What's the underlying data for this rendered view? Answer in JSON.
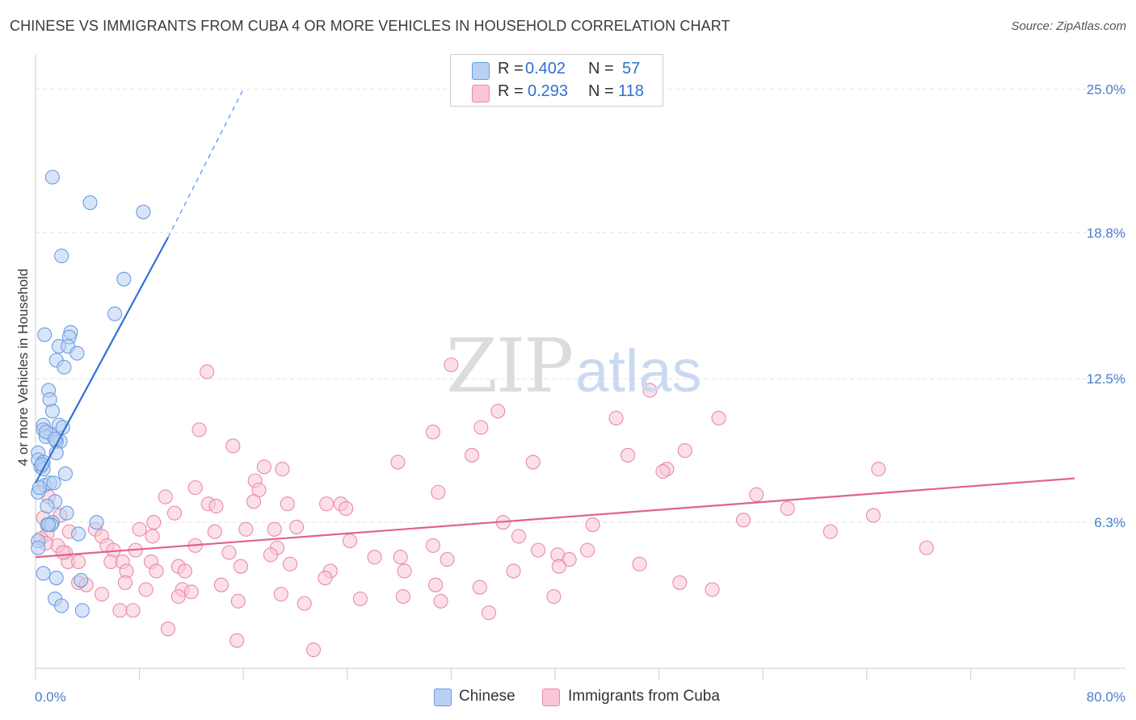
{
  "title": "CHINESE VS IMMIGRANTS FROM CUBA 4 OR MORE VEHICLES IN HOUSEHOLD CORRELATION CHART",
  "source": "Source: ZipAtlas.com",
  "watermark": {
    "zip": "ZIP",
    "atlas": "atlas"
  },
  "legend": {
    "rows": [
      {
        "r_label": "R = ",
        "r_value": "0.402",
        "n_label": "N = ",
        "n_value": "57"
      },
      {
        "r_label": "R = ",
        "r_value": "0.293",
        "n_label": "N = ",
        "n_value": "118"
      }
    ]
  },
  "colors": {
    "chinese_fill": "#b8d0f3",
    "chinese_stroke": "#6a9de0",
    "chinese_line": "#2f72d6",
    "cuba_fill": "#f9c6d6",
    "cuba_stroke": "#e98aa8",
    "cuba_line": "#e0628e",
    "tick_text": "#4a7cc7",
    "grid": "#e2e2e2"
  },
  "chart_data": {
    "type": "scatter",
    "title": "CHINESE VS IMMIGRANTS FROM CUBA 4 OR MORE VEHICLES IN HOUSEHOLD CORRELATION CHART",
    "xlabel": "",
    "ylabel": "4 or more Vehicles in Household",
    "xlim": [
      0,
      80
    ],
    "ylim": [
      0,
      26.2
    ],
    "x_tick_labels": [
      "0.0%",
      "80.0%"
    ],
    "y_ticks": [
      6.3,
      12.5,
      18.8,
      25.0
    ],
    "y_tick_labels": [
      "6.3%",
      "12.5%",
      "18.8%",
      "25.0%"
    ],
    "grid": true,
    "legend_position": "top-center",
    "series": [
      {
        "name": "Chinese",
        "R": 0.402,
        "N": 57,
        "trend": {
          "x0": 0.0,
          "y0": 8.0,
          "x1": 10.2,
          "y1": 18.6,
          "dash_to_x": 16.0,
          "dash_to_y": 25.0
        },
        "points": [
          [
            1.3,
            21.2
          ],
          [
            4.2,
            20.1
          ],
          [
            8.3,
            19.7
          ],
          [
            2.0,
            17.8
          ],
          [
            6.8,
            16.8
          ],
          [
            6.1,
            15.3
          ],
          [
            0.7,
            14.4
          ],
          [
            2.7,
            14.5
          ],
          [
            2.6,
            14.3
          ],
          [
            1.8,
            13.9
          ],
          [
            2.5,
            13.9
          ],
          [
            3.2,
            13.6
          ],
          [
            1.6,
            13.3
          ],
          [
            2.2,
            13.0
          ],
          [
            1.0,
            12.0
          ],
          [
            1.1,
            11.6
          ],
          [
            1.3,
            11.1
          ],
          [
            0.6,
            10.5
          ],
          [
            1.8,
            10.5
          ],
          [
            0.6,
            10.3
          ],
          [
            1.2,
            10.1
          ],
          [
            0.8,
            10.0
          ],
          [
            1.9,
            9.8
          ],
          [
            1.6,
            9.8
          ],
          [
            0.2,
            9.3
          ],
          [
            1.6,
            9.3
          ],
          [
            0.2,
            9.0
          ],
          [
            0.6,
            8.9
          ],
          [
            0.4,
            8.7
          ],
          [
            0.6,
            8.6
          ],
          [
            2.3,
            8.4
          ],
          [
            0.7,
            7.9
          ],
          [
            1.1,
            8.0
          ],
          [
            0.2,
            7.6
          ],
          [
            1.5,
            7.2
          ],
          [
            0.9,
            7.0
          ],
          [
            2.4,
            6.7
          ],
          [
            1.3,
            6.3
          ],
          [
            4.7,
            6.3
          ],
          [
            0.9,
            6.2
          ],
          [
            1.2,
            6.2
          ],
          [
            3.3,
            5.8
          ],
          [
            0.2,
            5.5
          ],
          [
            0.2,
            5.2
          ],
          [
            0.6,
            4.1
          ],
          [
            1.6,
            3.9
          ],
          [
            3.5,
            3.8
          ],
          [
            1.5,
            3.0
          ],
          [
            2.0,
            2.7
          ],
          [
            3.6,
            2.5
          ],
          [
            1.0,
            6.2
          ],
          [
            0.5,
            8.8
          ],
          [
            1.4,
            8.0
          ],
          [
            2.1,
            10.4
          ],
          [
            0.8,
            10.2
          ],
          [
            1.5,
            9.9
          ],
          [
            0.3,
            7.8
          ]
        ]
      },
      {
        "name": "Immigrants from Cuba",
        "R": 0.293,
        "N": 118,
        "trend": {
          "x0": 0.0,
          "y0": 4.8,
          "x1": 80.0,
          "y1": 8.2
        },
        "points": [
          [
            32.0,
            13.1
          ],
          [
            13.2,
            12.8
          ],
          [
            47.3,
            12.0
          ],
          [
            35.6,
            11.1
          ],
          [
            44.7,
            10.8
          ],
          [
            52.6,
            10.8
          ],
          [
            34.3,
            10.4
          ],
          [
            12.6,
            10.3
          ],
          [
            30.6,
            10.2
          ],
          [
            15.2,
            9.6
          ],
          [
            50.0,
            9.4
          ],
          [
            33.6,
            9.2
          ],
          [
            45.6,
            9.2
          ],
          [
            38.3,
            8.9
          ],
          [
            27.9,
            8.9
          ],
          [
            17.6,
            8.7
          ],
          [
            19.0,
            8.6
          ],
          [
            48.6,
            8.6
          ],
          [
            64.9,
            8.6
          ],
          [
            48.3,
            8.5
          ],
          [
            16.9,
            8.1
          ],
          [
            12.3,
            7.8
          ],
          [
            17.2,
            7.7
          ],
          [
            31.0,
            7.6
          ],
          [
            55.5,
            7.5
          ],
          [
            10.0,
            7.4
          ],
          [
            16.8,
            7.2
          ],
          [
            13.3,
            7.1
          ],
          [
            19.4,
            7.1
          ],
          [
            22.4,
            7.1
          ],
          [
            23.5,
            7.1
          ],
          [
            13.9,
            7.0
          ],
          [
            23.9,
            6.9
          ],
          [
            57.9,
            6.9
          ],
          [
            10.7,
            6.7
          ],
          [
            64.5,
            6.6
          ],
          [
            36.0,
            6.3
          ],
          [
            9.1,
            6.3
          ],
          [
            42.9,
            6.2
          ],
          [
            54.5,
            6.4
          ],
          [
            20.1,
            6.1
          ],
          [
            16.2,
            6.0
          ],
          [
            8.0,
            6.0
          ],
          [
            18.4,
            6.0
          ],
          [
            4.6,
            6.0
          ],
          [
            61.2,
            5.9
          ],
          [
            13.8,
            5.9
          ],
          [
            2.6,
            5.9
          ],
          [
            5.1,
            5.7
          ],
          [
            9.0,
            5.7
          ],
          [
            37.2,
            5.7
          ],
          [
            24.2,
            5.5
          ],
          [
            12.3,
            5.3
          ],
          [
            5.5,
            5.3
          ],
          [
            30.6,
            5.3
          ],
          [
            18.6,
            5.2
          ],
          [
            38.7,
            5.1
          ],
          [
            68.6,
            5.2
          ],
          [
            42.5,
            5.1
          ],
          [
            6.0,
            5.1
          ],
          [
            7.7,
            5.1
          ],
          [
            14.9,
            5.0
          ],
          [
            2.3,
            5.0
          ],
          [
            40.2,
            4.9
          ],
          [
            18.1,
            4.9
          ],
          [
            28.1,
            4.8
          ],
          [
            26.1,
            4.8
          ],
          [
            41.1,
            4.7
          ],
          [
            31.7,
            4.7
          ],
          [
            2.5,
            4.6
          ],
          [
            5.8,
            4.6
          ],
          [
            6.7,
            4.6
          ],
          [
            8.9,
            4.6
          ],
          [
            3.3,
            4.6
          ],
          [
            19.6,
            4.5
          ],
          [
            11.0,
            4.4
          ],
          [
            15.8,
            4.4
          ],
          [
            46.5,
            4.5
          ],
          [
            40.3,
            4.4
          ],
          [
            7.0,
            4.2
          ],
          [
            9.3,
            4.2
          ],
          [
            11.5,
            4.2
          ],
          [
            28.4,
            4.2
          ],
          [
            36.8,
            4.2
          ],
          [
            22.7,
            4.2
          ],
          [
            22.3,
            3.9
          ],
          [
            3.3,
            3.7
          ],
          [
            6.9,
            3.7
          ],
          [
            3.9,
            3.6
          ],
          [
            14.3,
            3.6
          ],
          [
            49.6,
            3.7
          ],
          [
            30.8,
            3.6
          ],
          [
            8.5,
            3.4
          ],
          [
            11.3,
            3.4
          ],
          [
            12.0,
            3.3
          ],
          [
            18.9,
            3.2
          ],
          [
            34.2,
            3.5
          ],
          [
            52.1,
            3.4
          ],
          [
            28.3,
            3.1
          ],
          [
            5.1,
            3.2
          ],
          [
            11.0,
            3.1
          ],
          [
            15.6,
            2.9
          ],
          [
            39.9,
            3.1
          ],
          [
            20.7,
            2.8
          ],
          [
            25.0,
            3.0
          ],
          [
            31.2,
            2.9
          ],
          [
            6.5,
            2.5
          ],
          [
            7.5,
            2.5
          ],
          [
            34.9,
            2.4
          ],
          [
            10.2,
            1.7
          ],
          [
            15.5,
            1.2
          ],
          [
            21.4,
            0.8
          ],
          [
            1.0,
            7.4
          ],
          [
            0.6,
            6.5
          ],
          [
            1.9,
            6.6
          ],
          [
            0.9,
            5.8
          ],
          [
            1.7,
            5.3
          ],
          [
            0.4,
            5.6
          ],
          [
            0.8,
            5.4
          ],
          [
            2.1,
            5.0
          ]
        ]
      }
    ]
  },
  "bottom_legend": [
    "Chinese",
    "Immigrants from Cuba"
  ]
}
